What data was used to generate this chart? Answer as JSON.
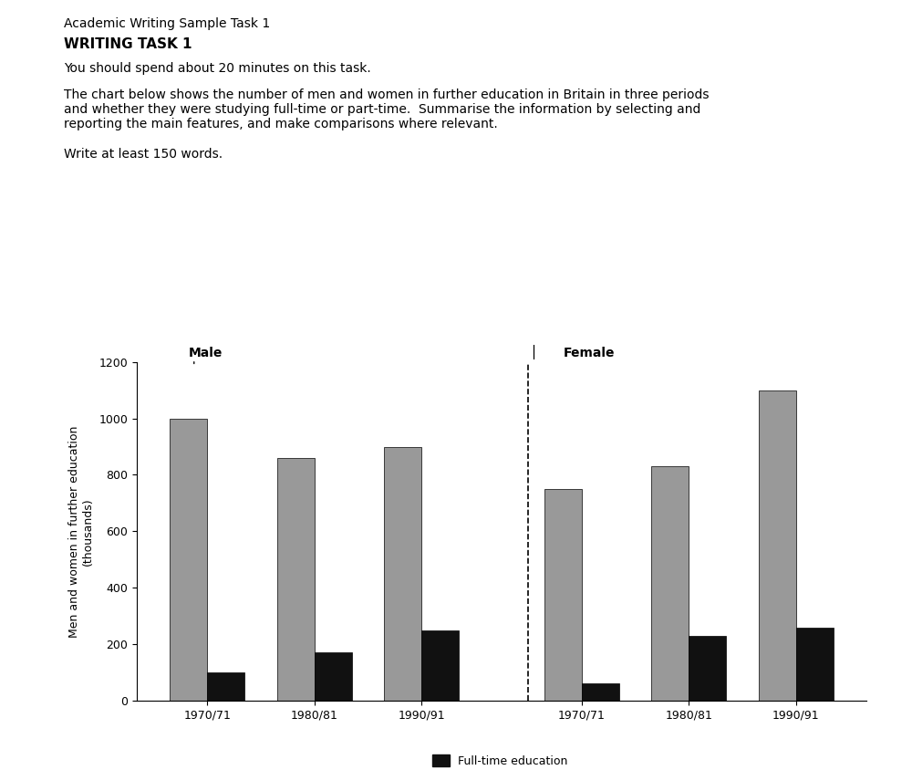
{
  "title_line1": "Academic Writing Sample Task 1",
  "title_line2": "WRITING TASK 1",
  "instruction1": "You should spend about 20 minutes on this task.",
  "instruction2": "The chart below shows the number of men and women in further education in Britain in three periods\nand whether they were studying full-time or part-time.  Summarise the information by selecting and\nreporting the main features, and make comparisons where relevant.",
  "instruction3": "Write at least 150 words.",
  "male_fulltime": [
    100,
    170,
    250
  ],
  "male_parttime": [
    1000,
    860,
    900
  ],
  "female_fulltime": [
    60,
    230,
    260
  ],
  "female_parttime": [
    750,
    830,
    1100
  ],
  "years": [
    "1970/71",
    "1980/81",
    "1990/91"
  ],
  "ylabel_line1": "Men and women in further education",
  "ylabel_line2": "(thousands)",
  "color_fulltime": "#111111",
  "color_parttime": "#999999",
  "ylim": [
    0,
    1200
  ],
  "yticks": [
    0,
    200,
    400,
    600,
    800,
    1000,
    1200
  ],
  "bar_width": 0.35,
  "background_color": "#ffffff"
}
